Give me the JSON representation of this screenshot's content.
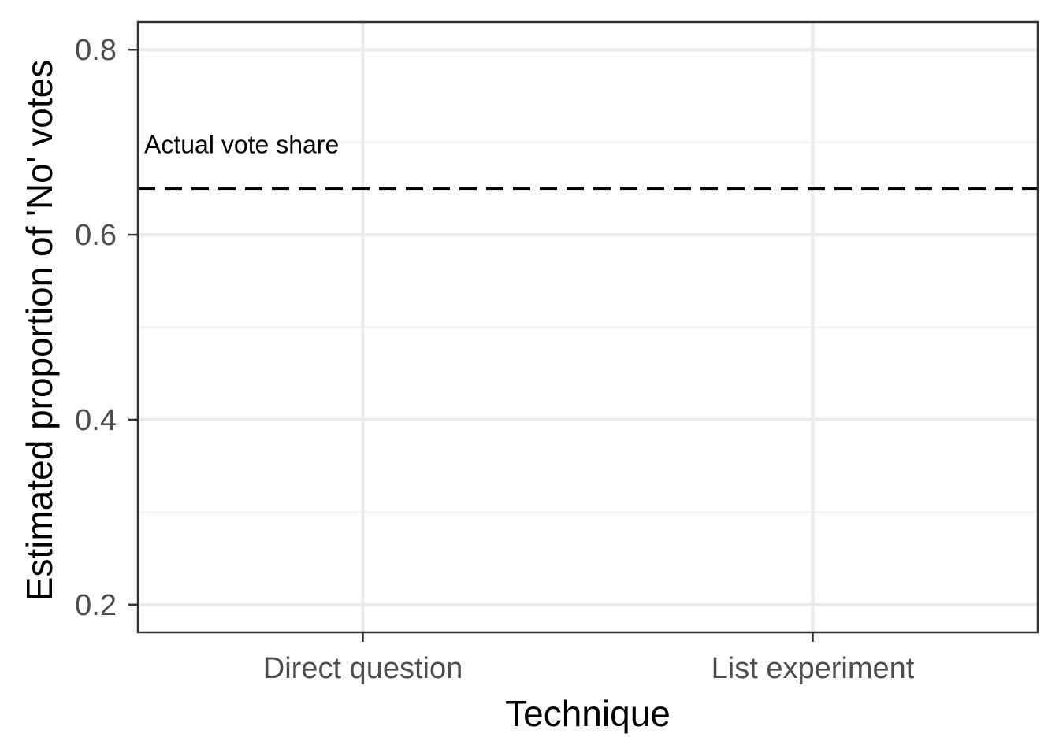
{
  "chart_data": {
    "type": "scatter",
    "title": "",
    "xlabel": "Technique",
    "ylabel": "Estimated proportion of 'No' votes",
    "categories": [
      "Direct question",
      "List experiment"
    ],
    "ylim": [
      0.17,
      0.83
    ],
    "yticks": [
      0.2,
      0.4,
      0.6,
      0.8
    ],
    "ytick_labels": [
      "0.2",
      "0.4",
      "0.6",
      "0.8"
    ],
    "series": [],
    "reference_line": {
      "y": 0.65,
      "style": "dashed",
      "label": "Actual vote share"
    },
    "grid": true,
    "legend": "none"
  },
  "colors": {
    "panel_border": "#333333",
    "grid_major": "#ebebeb",
    "grid_minor": "#f2f2f2",
    "tick_text": "#4d4d4d",
    "reference_line": "#000000"
  }
}
